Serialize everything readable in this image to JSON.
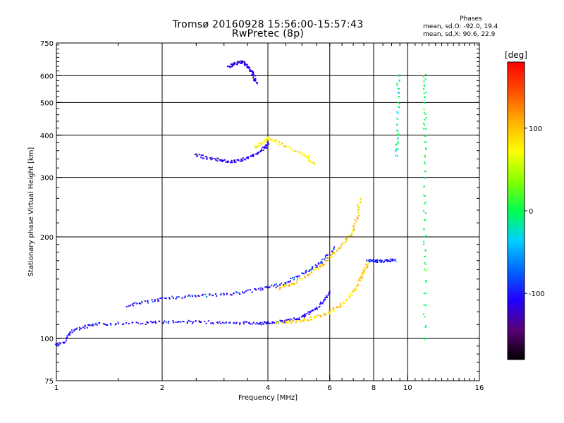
{
  "header": {
    "title_line1": "Tromsø 20160928 15:56:00-15:57:43",
    "title_line2": "RwPretec (8p)"
  },
  "phase_info": {
    "title": "Phases",
    "line1": "mean, sd,O: -92.0, 19.4",
    "line2": "mean, sd,X:  90.6, 22.9"
  },
  "colorbar": {
    "label": "[deg]",
    "ticks": [
      {
        "value": 100,
        "label": "100"
      },
      {
        "value": 0,
        "label": "0"
      },
      {
        "value": -100,
        "label": "-100"
      }
    ],
    "range": [
      -180,
      180
    ],
    "colors": [
      "#000000",
      "#5a0078",
      "#2200ff",
      "#0066ff",
      "#00d0ff",
      "#00ff50",
      "#88ff00",
      "#ffff00",
      "#ffb000",
      "#ff5000",
      "#ff0000"
    ]
  },
  "chart_data": {
    "type": "scatter",
    "xlabel": "Frequency [MHz]",
    "ylabel": "Stationary phase Virtual Height [km]",
    "xscale": "log",
    "yscale": "log",
    "xlim": [
      1,
      16
    ],
    "ylim": [
      75,
      750
    ],
    "grid": true,
    "xticks": [
      {
        "value": 1,
        "label": "1"
      },
      {
        "value": 2,
        "label": "2"
      },
      {
        "value": 4,
        "label": "4"
      },
      {
        "value": 6,
        "label": "6"
      },
      {
        "value": 8,
        "label": "8"
      },
      {
        "value": 10,
        "label": "10"
      },
      {
        "value": 16,
        "label": "16"
      }
    ],
    "xgrid": [
      2,
      4,
      6,
      8,
      10
    ],
    "yticks": [
      {
        "value": 75,
        "label": "75"
      },
      {
        "value": 100,
        "label": "100"
      },
      {
        "value": 200,
        "label": "200"
      },
      {
        "value": 300,
        "label": "300"
      },
      {
        "value": 400,
        "label": "400"
      },
      {
        "value": 500,
        "label": "500"
      },
      {
        "value": 600,
        "label": "600"
      },
      {
        "value": 750,
        "label": "750"
      }
    ],
    "ygrid": [
      100,
      200,
      300,
      400,
      500,
      600
    ],
    "traces": [
      {
        "desc": "E-region O trace",
        "phase": -105,
        "points": [
          [
            1.0,
            96
          ],
          [
            1.05,
            97
          ],
          [
            1.1,
            105
          ],
          [
            1.2,
            108
          ],
          [
            1.3,
            110
          ],
          [
            1.5,
            111
          ],
          [
            1.8,
            111
          ],
          [
            2.0,
            112
          ],
          [
            2.3,
            112
          ],
          [
            2.6,
            112
          ],
          [
            3.0,
            111
          ],
          [
            3.4,
            111
          ],
          [
            3.8,
            111
          ],
          [
            4.0,
            111
          ],
          [
            4.3,
            112
          ],
          [
            4.6,
            113
          ],
          [
            4.9,
            115
          ],
          [
            5.2,
            118
          ],
          [
            5.5,
            123
          ],
          [
            5.8,
            130
          ],
          [
            6.0,
            137
          ]
        ]
      },
      {
        "desc": "E-region X trace",
        "phase": 90,
        "points": [
          [
            4.2,
            111
          ],
          [
            4.6,
            112
          ],
          [
            5.0,
            113
          ],
          [
            5.4,
            115
          ],
          [
            5.8,
            118
          ],
          [
            6.2,
            122
          ],
          [
            6.6,
            128
          ],
          [
            7.0,
            137
          ],
          [
            7.3,
            148
          ],
          [
            7.5,
            158
          ],
          [
            7.7,
            168
          ]
        ]
      },
      {
        "desc": "Lower F trace O",
        "phase": -100,
        "points": [
          [
            1.6,
            125
          ],
          [
            1.8,
            128
          ],
          [
            2.0,
            131
          ],
          [
            2.3,
            133
          ],
          [
            2.6,
            134
          ],
          [
            3.0,
            135
          ],
          [
            3.4,
            137
          ],
          [
            3.8,
            140
          ],
          [
            4.2,
            143
          ],
          [
            4.6,
            148
          ],
          [
            5.0,
            155
          ],
          [
            5.4,
            162
          ],
          [
            5.8,
            172
          ],
          [
            6.2,
            185
          ]
        ]
      },
      {
        "desc": "F trace X",
        "phase": 95,
        "points": [
          [
            4.3,
            140
          ],
          [
            4.7,
            145
          ],
          [
            5.1,
            152
          ],
          [
            5.5,
            160
          ],
          [
            5.9,
            170
          ],
          [
            6.3,
            182
          ],
          [
            6.7,
            195
          ],
          [
            7.0,
            210
          ],
          [
            7.2,
            230
          ],
          [
            7.3,
            260
          ]
        ]
      },
      {
        "desc": "Upper F trace",
        "phase": -110,
        "points": [
          [
            2.5,
            350
          ],
          [
            2.7,
            342
          ],
          [
            2.9,
            338
          ],
          [
            3.1,
            335
          ],
          [
            3.3,
            336
          ],
          [
            3.5,
            342
          ],
          [
            3.7,
            352
          ],
          [
            3.9,
            365
          ],
          [
            4.0,
            380
          ]
        ]
      },
      {
        "desc": "Upper F X",
        "phase": 80,
        "points": [
          [
            3.7,
            370
          ],
          [
            3.85,
            380
          ],
          [
            4.0,
            392
          ],
          [
            4.2,
            385
          ],
          [
            4.5,
            370
          ],
          [
            4.9,
            355
          ],
          [
            5.2,
            345
          ],
          [
            5.4,
            330
          ]
        ]
      },
      {
        "desc": "Top echo",
        "phase": -115,
        "points": [
          [
            3.1,
            640
          ],
          [
            3.2,
            648
          ],
          [
            3.3,
            655
          ],
          [
            3.4,
            660
          ],
          [
            3.5,
            640
          ],
          [
            3.6,
            620
          ],
          [
            3.65,
            600
          ],
          [
            3.7,
            570
          ]
        ]
      },
      {
        "desc": "Blob at 9 MHz",
        "phase": -95,
        "points": [
          [
            7.7,
            170
          ],
          [
            8.0,
            170
          ],
          [
            8.4,
            169
          ],
          [
            8.8,
            170
          ],
          [
            9.2,
            171
          ]
        ]
      },
      {
        "desc": "Spike at 11 MHz",
        "phase": 0,
        "points": [
          [
            11.2,
            100
          ],
          [
            11.2,
            160
          ],
          [
            11.2,
            210
          ],
          [
            11.2,
            300
          ],
          [
            11.2,
            400
          ],
          [
            11.2,
            500
          ],
          [
            11.2,
            600
          ]
        ]
      },
      {
        "desc": "Spike at 9.4 MHz",
        "phase": -20,
        "points": [
          [
            9.3,
            350
          ],
          [
            9.35,
            400
          ],
          [
            9.4,
            500
          ],
          [
            9.4,
            600
          ]
        ]
      }
    ]
  }
}
